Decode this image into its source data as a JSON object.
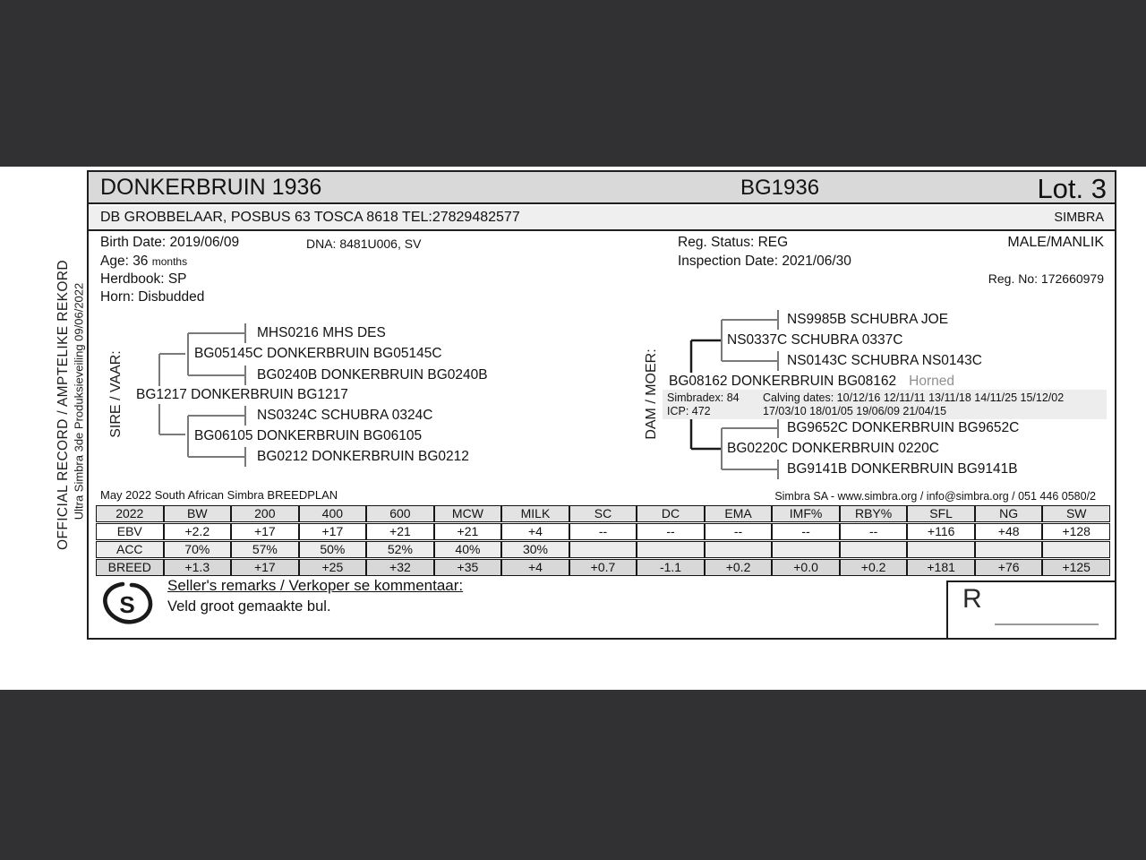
{
  "page": {
    "margin_note_primary": "OFFICIAL RECORD / AMPTELIKE REKORD",
    "margin_note_secondary": "Ultra Simbra 3de Produksieveiling  09/06/2022"
  },
  "header": {
    "animal_name": "DONKERBRUIN 1936",
    "animal_tag": "BG1936",
    "lot": "Lot. 3",
    "seller_line": "DB GROBBELAAR, POSBUS 63 TOSCA 8618 TEL:27829482577",
    "breed": "SIMBRA"
  },
  "details": {
    "birth_date": "Birth Date: 2019/06/09",
    "dna": "DNA: 8481U006, SV",
    "age_text": "Age: 36",
    "age_unit": "months",
    "herdbook": "Herdbook: SP",
    "horn": "Horn: Disbudded",
    "reg_status": "Reg. Status: REG",
    "inspection_date": "Inspection Date: 2021/06/30",
    "sex": "MALE/MANLIK",
    "reg_no": "Reg. No: 172660979"
  },
  "pedigree": {
    "sire": {
      "label": "SIRE / VAAR:",
      "root": "BG1217 DONKERBRUIN BG1217",
      "parents": [
        "BG05145C DONKERBRUIN BG05145C",
        "BG06105 DONKERBRUIN BG06105"
      ],
      "grandparents": [
        "MHS0216 MHS DES",
        "BG0240B DONKERBRUIN BG0240B",
        "NS0324C SCHUBRA 0324C",
        "BG0212 DONKERBRUIN BG0212"
      ]
    },
    "dam": {
      "label": "DAM / MOER:",
      "root": "BG08162 DONKERBRUIN BG08162",
      "horn_status": "Horned",
      "simbradex": "Simbradex: 84",
      "icp": "ICP: 472",
      "calving_line1": "Calving dates: 10/12/16  12/11/11  13/11/18  14/11/25  15/12/02",
      "calving_line2": "17/03/10  18/01/05  19/06/09  21/04/15",
      "parents": [
        "NS0337C SCHUBRA 0337C",
        "BG0220C DONKERBRUIN 0220C"
      ],
      "grandparents": [
        "NS9985B SCHUBRA JOE",
        "NS0143C SCHUBRA NS0143C",
        "BG9652C DONKERBRUIN BG9652C",
        "BG9141B DONKERBRUIN BG9141B"
      ]
    }
  },
  "breedplan": {
    "caption_left": "May 2022 South African Simbra BREEDPLAN",
    "caption_right": "Simbra SA - www.simbra.org / info@simbra.org / 051 446 0580/2",
    "table": {
      "columns": [
        "2022",
        "BW",
        "200",
        "400",
        "600",
        "MCW",
        "MILK",
        "SC",
        "DC",
        "EMA",
        "IMF%",
        "RBY%",
        "SFL",
        "NG",
        "SW"
      ],
      "rows": [
        {
          "label": "EBV",
          "values": [
            "+2.2",
            "+17",
            "+17",
            "+21",
            "+21",
            "+4",
            "--",
            "--",
            "--",
            "--",
            "--",
            "+116",
            "+48",
            "+128"
          ]
        },
        {
          "label": "ACC",
          "values": [
            "70%",
            "57%",
            "50%",
            "52%",
            "40%",
            "30%",
            "",
            "",
            "",
            "",
            "",
            "",
            "",
            ""
          ]
        },
        {
          "label": "BREED",
          "values": [
            "+1.3",
            "+17",
            "+25",
            "+32",
            "+35",
            "+4",
            "+0.7",
            "-1.1",
            "+0.2",
            "+0.0",
            "+0.2",
            "+181",
            "+76",
            "+125"
          ]
        }
      ]
    }
  },
  "remarks": {
    "logo_letter": "S",
    "title": "Seller's remarks / Verkoper se kommentaar:",
    "text": "Veld groot gemaakte bul."
  },
  "price": {
    "currency_label": "R"
  },
  "colors": {
    "viewer_band": "#313133",
    "title_bar_bg": "#d9d9d9",
    "subtitle_bar_bg": "#efefef",
    "stats_strip_bg": "#ededed",
    "table_header_bg": "#e3e3e3",
    "table_acc_bg": "#ededed",
    "table_breed_bg": "#d8d8d8",
    "muted_text": "#8f8f8f"
  }
}
